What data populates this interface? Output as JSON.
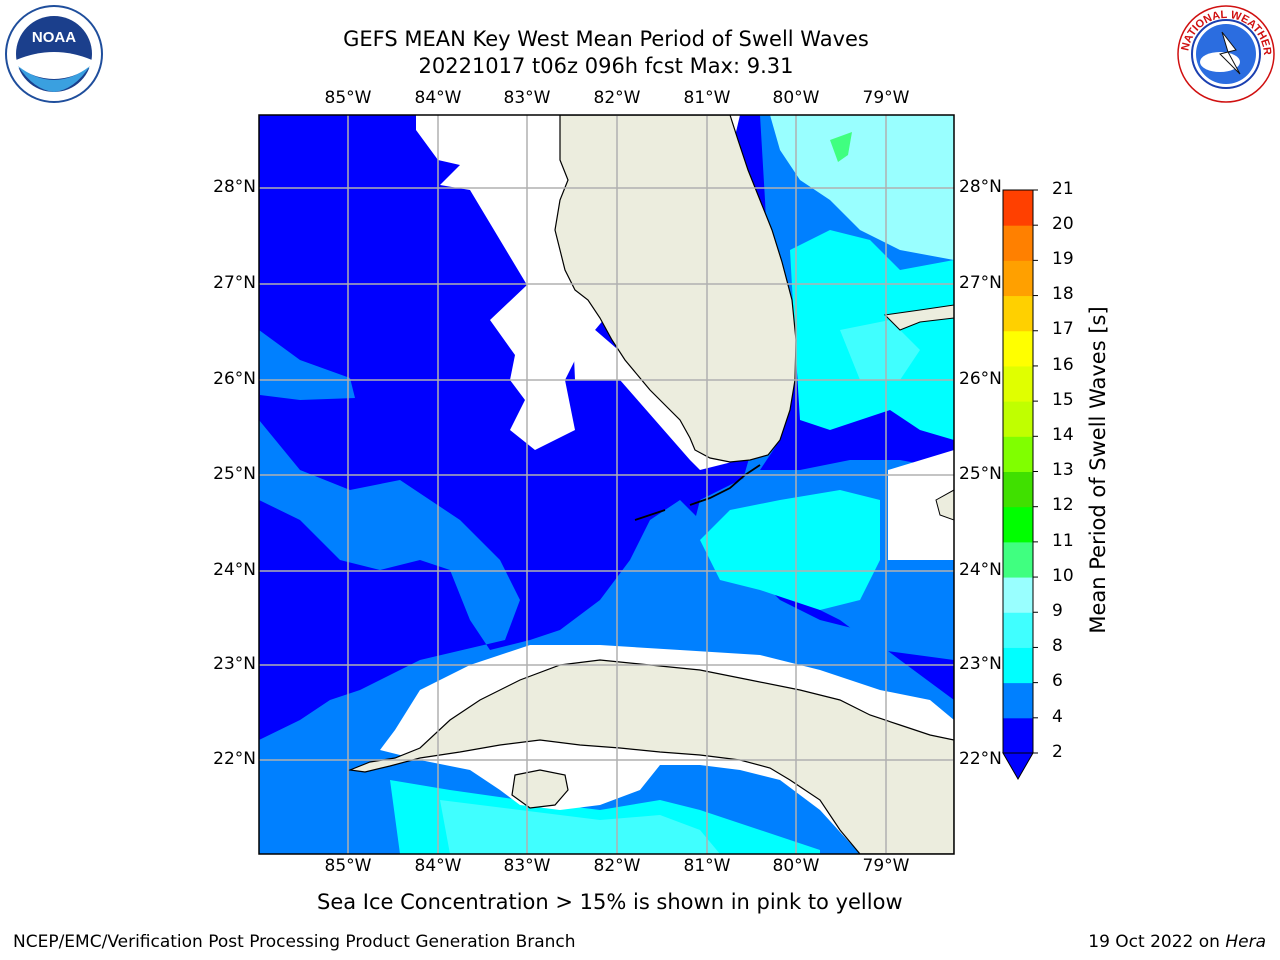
{
  "title": {
    "line1": "GEFS MEAN Key West Mean Period of Swell Waves",
    "line2": "20221017 t06z 096h fcst   Max: 9.31"
  },
  "map": {
    "lon_ticks": [
      "85°W",
      "84°W",
      "83°W",
      "82°W",
      "81°W",
      "80°W",
      "79°W"
    ],
    "lat_ticks": [
      "28°N",
      "27°N",
      "26°N",
      "25°N",
      "24°N",
      "23°N",
      "22°N"
    ],
    "lon_range": [
      -86,
      -78.3
    ],
    "lat_range": [
      21.1,
      28.8
    ]
  },
  "colorbar": {
    "label": "Mean Period of Swell Waves [s]",
    "ticks": [
      "2",
      "4",
      "6",
      "8",
      "9",
      "10",
      "11",
      "12",
      "13",
      "14",
      "15",
      "16",
      "17",
      "18",
      "19",
      "20",
      "21"
    ],
    "colors": [
      "#0000ff",
      "#0080ff",
      "#00ffff",
      "#40ffff",
      "#99ffff",
      "#40ff80",
      "#00ff00",
      "#40e000",
      "#80ff00",
      "#c0ff00",
      "#e0ff00",
      "#ffff00",
      "#ffd000",
      "#ffa000",
      "#ff8000",
      "#ff4000",
      "#ff0000"
    ]
  },
  "logos": {
    "left": "NOAA",
    "right": "NATIONAL WEATHER SERVICE"
  },
  "footnote": "Sea Ice Concentration > 15% is shown in pink to yellow",
  "credit": "NCEP/EMC/Verification Post Processing Product Generation Branch",
  "date": "19 Oct 2022 on ",
  "machine": "Hera"
}
